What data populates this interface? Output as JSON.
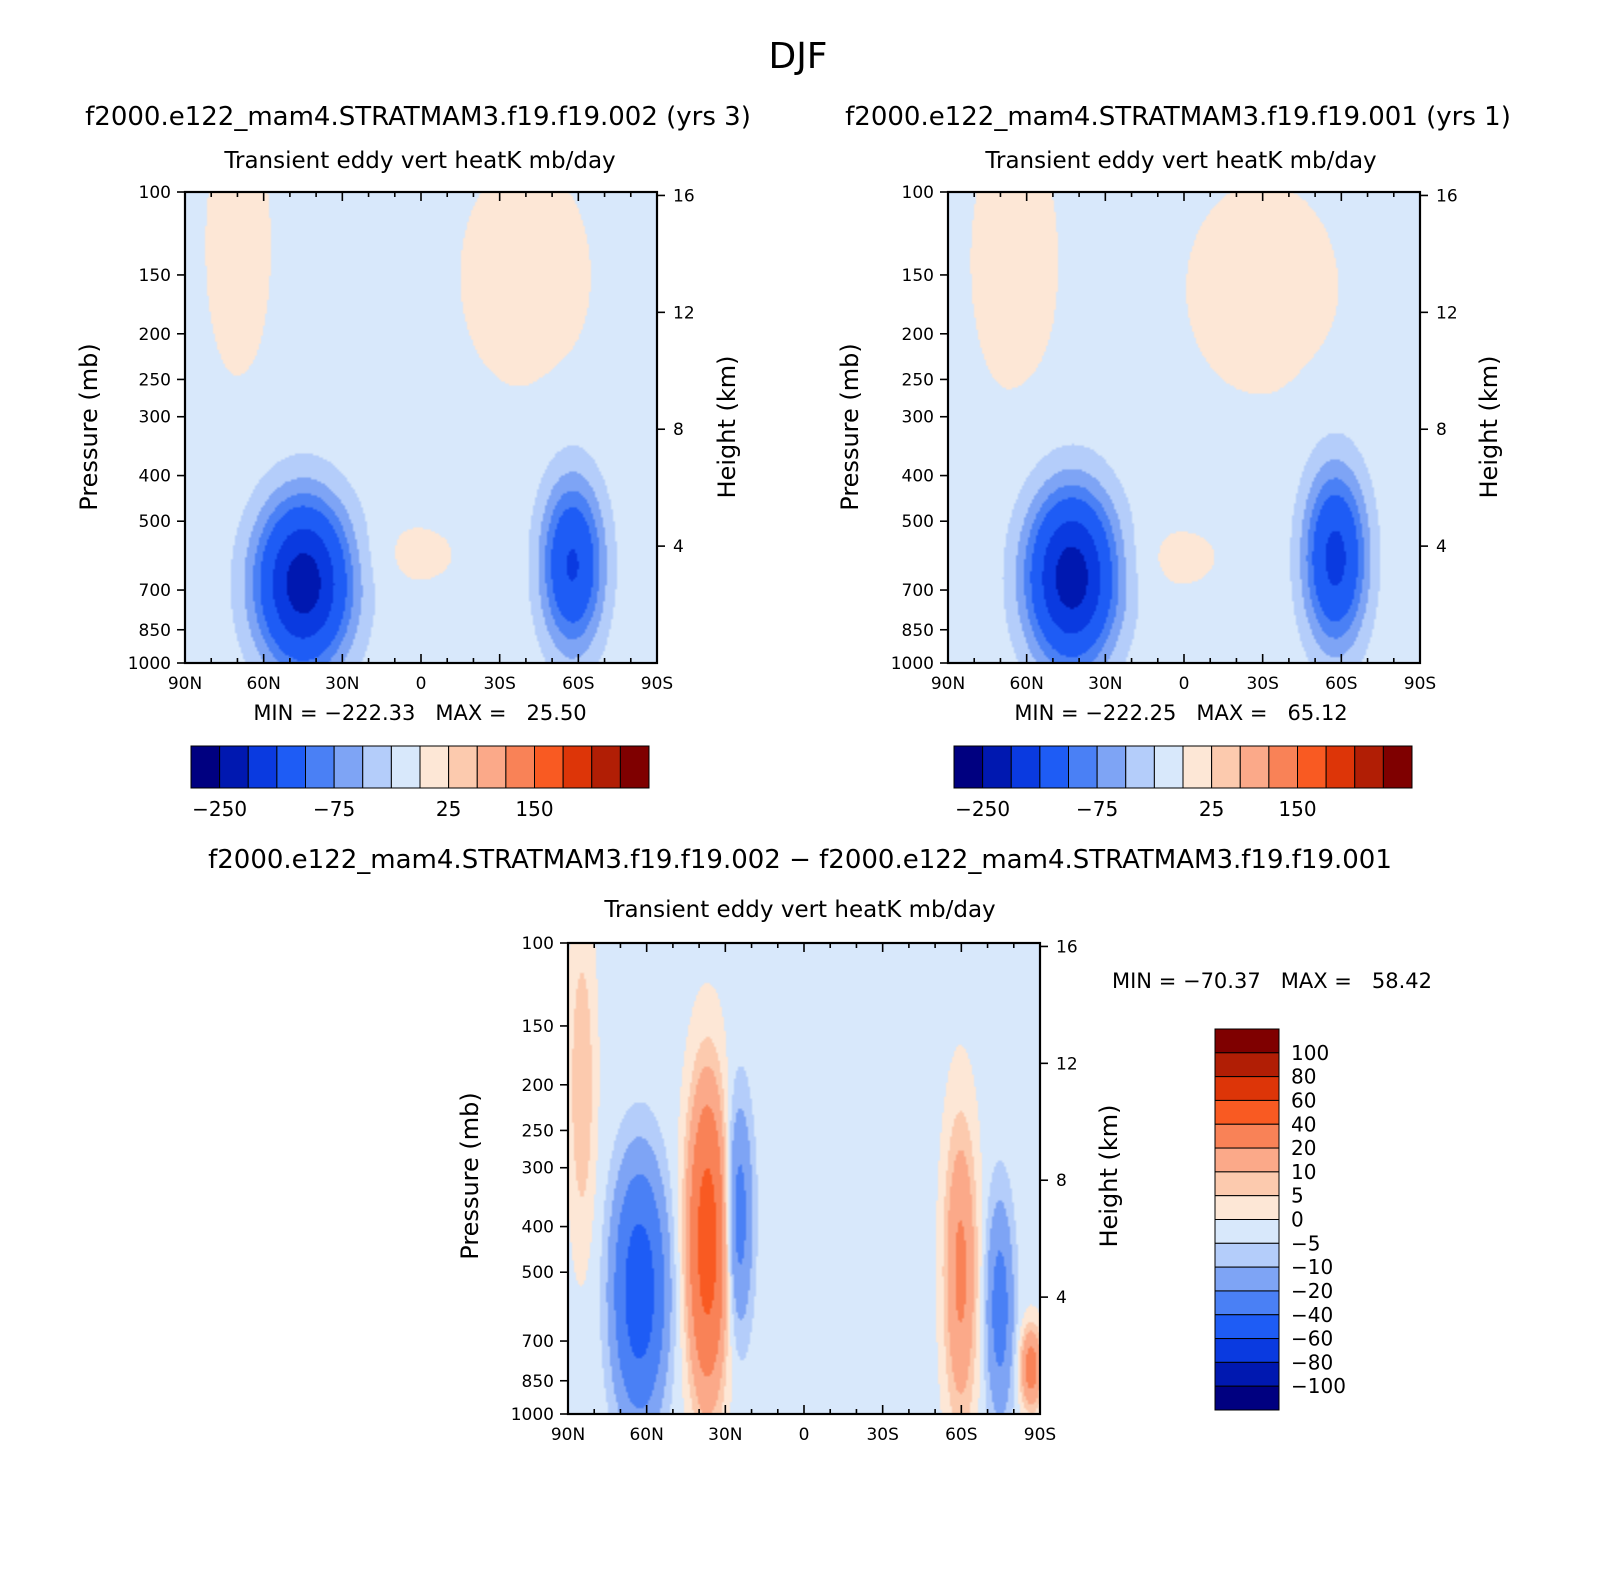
{
  "title": "DJF",
  "variable": "Transient eddy vert heatK mb/day",
  "panels": [
    {
      "case_title": "f2000.e122_mam4.STRATMAM3.f19.f19.002 (yrs 3)",
      "subtitle": "Transient eddy vert heatK mb/day",
      "minmax": "MIN = −222.33   MAX =   25.50"
    },
    {
      "case_title": "f2000.e122_mam4.STRATMAM3.f19.f19.001 (yrs 1)",
      "subtitle": "Transient eddy vert heatK mb/day",
      "minmax": "MIN = −222.25   MAX =   65.12"
    },
    {
      "case_title": "f2000.e122_mam4.STRATMAM3.f19.f19.002 − f2000.e122_mam4.STRATMAM3.f19.f19.001",
      "subtitle": "Transient eddy vert heatK mb/day",
      "minmax": "MIN = −70.37   MAX =   58.42"
    }
  ],
  "colorbar_top": {
    "colors": [
      "#000080",
      "#0018b0",
      "#0a3ae0",
      "#1e5cf5",
      "#4a80f5",
      "#7ea4f5",
      "#b4cdfa",
      "#d8e8fb",
      "#fde7d6",
      "#fccaae",
      "#fba989",
      "#f98257",
      "#f95a22",
      "#dd3508",
      "#b11e05",
      "#7f0000"
    ],
    "labels": [
      "−250",
      "−75",
      "25",
      "150"
    ]
  },
  "colorbar_diff": {
    "colors": [
      "#000080",
      "#0018b0",
      "#0a3ae0",
      "#1e5cf5",
      "#4a80f5",
      "#7ea4f5",
      "#b4cdfa",
      "#d8e8fb",
      "#fde7d6",
      "#fccaae",
      "#fba989",
      "#f98257",
      "#f95a22",
      "#dd3508",
      "#b11e05",
      "#7f0000"
    ],
    "labels": [
      "100",
      "80",
      "60",
      "40",
      "20",
      "10",
      "5",
      "0",
      "−5",
      "−10",
      "−20",
      "−40",
      "−60",
      "−80",
      "−100"
    ]
  },
  "chart_data": [
    {
      "type": "heatmap",
      "title": "Transient eddy vert heatK mb/day",
      "xlabel": "",
      "ylabel": "Pressure (mb)",
      "y2label": "Height (km)",
      "x_ticks": [
        "90N",
        "60N",
        "30N",
        "0",
        "30S",
        "60S",
        "90S"
      ],
      "x_tick_values": [
        90,
        60,
        30,
        0,
        -30,
        -60,
        -90
      ],
      "y_ticks": [
        100,
        150,
        200,
        250,
        300,
        400,
        500,
        700,
        850,
        1000
      ],
      "y2_ticks": [
        16,
        12,
        8,
        4
      ],
      "ylim": [
        1000,
        100
      ],
      "min": -222.33,
      "max": 25.5,
      "features": [
        {
          "lat": 45,
          "p": 680,
          "value": -222,
          "lat_width": 18,
          "p_width": 280
        },
        {
          "lat": -58,
          "p": 620,
          "value": -150,
          "lat_width": 12,
          "p_width": 260
        },
        {
          "lat": 70,
          "p": 130,
          "value": 10,
          "lat_width": 15,
          "p_width": 100
        },
        {
          "lat": -40,
          "p": 150,
          "value": 10,
          "lat_width": 30,
          "p_width": 100
        },
        {
          "lat": 5,
          "p": 590,
          "value": 10,
          "lat_width": 20,
          "p_width": 100
        }
      ]
    },
    {
      "type": "heatmap",
      "title": "Transient eddy vert heatK mb/day",
      "xlabel": "",
      "ylabel": "Pressure (mb)",
      "y2label": "Height (km)",
      "x_ticks": [
        "90N",
        "60N",
        "30N",
        "0",
        "30S",
        "60S",
        "90S"
      ],
      "x_tick_values": [
        90,
        60,
        30,
        0,
        -30,
        -60,
        -90
      ],
      "y_ticks": [
        100,
        150,
        200,
        250,
        300,
        400,
        500,
        700,
        850,
        1000
      ],
      "y2_ticks": [
        16,
        12,
        8,
        4
      ],
      "ylim": [
        1000,
        100
      ],
      "min": -222.25,
      "max": 65.12,
      "features": [
        {
          "lat": 43,
          "p": 660,
          "value": -222,
          "lat_width": 17,
          "p_width": 280
        },
        {
          "lat": -58,
          "p": 600,
          "value": -160,
          "lat_width": 12,
          "p_width": 260
        },
        {
          "lat": 65,
          "p": 140,
          "value": 10,
          "lat_width": 20,
          "p_width": 110
        },
        {
          "lat": -30,
          "p": 160,
          "value": 10,
          "lat_width": 35,
          "p_width": 100
        },
        {
          "lat": 5,
          "p": 600,
          "value": 10,
          "lat_width": 20,
          "p_width": 100
        }
      ]
    },
    {
      "type": "heatmap",
      "title": "Transient eddy vert heatK mb/day",
      "xlabel": "",
      "ylabel": "Pressure (mb)",
      "y2label": "Height (km)",
      "x_ticks": [
        "90N",
        "60N",
        "30N",
        "0",
        "30S",
        "60S",
        "90S"
      ],
      "x_tick_values": [
        90,
        60,
        30,
        0,
        -30,
        -60,
        -90
      ],
      "y_ticks": [
        100,
        150,
        200,
        250,
        300,
        400,
        500,
        700,
        850,
        1000
      ],
      "y2_ticks": [
        16,
        12,
        8,
        4
      ],
      "ylim": [
        1000,
        100
      ],
      "min": -70.37,
      "max": 58.42,
      "features": [
        {
          "lat": 63,
          "p": 550,
          "value": -55,
          "lat_width": 9,
          "p_width": 300
        },
        {
          "lat": 37,
          "p": 430,
          "value": 55,
          "lat_width": 7,
          "p_width": 300
        },
        {
          "lat": 25,
          "p": 380,
          "value": -25,
          "lat_width": 5,
          "p_width": 200
        },
        {
          "lat": -60,
          "p": 500,
          "value": 25,
          "lat_width": 6,
          "p_width": 350
        },
        {
          "lat": -75,
          "p": 600,
          "value": -25,
          "lat_width": 5,
          "p_width": 300
        },
        {
          "lat": 85,
          "p": 200,
          "value": 12,
          "lat_width": 5,
          "p_width": 150
        },
        {
          "lat": -87,
          "p": 800,
          "value": 30,
          "lat_width": 4,
          "p_width": 150
        }
      ]
    }
  ]
}
